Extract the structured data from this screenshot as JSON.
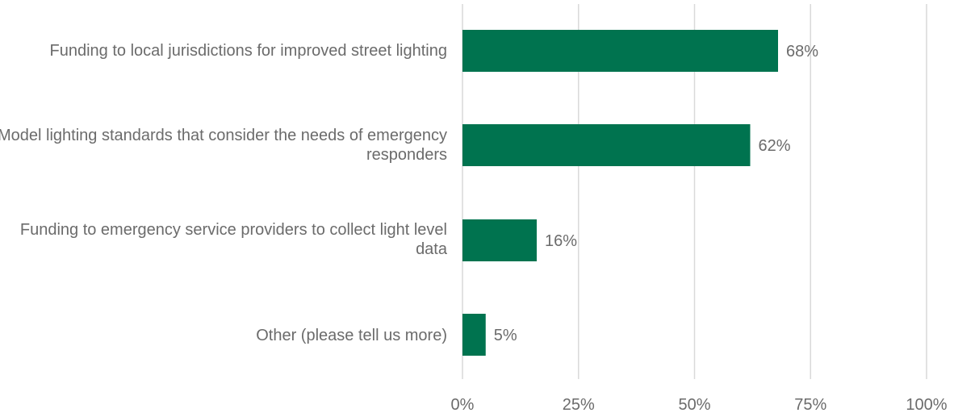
{
  "chart_data": {
    "type": "bar",
    "orientation": "horizontal",
    "categories": [
      "Funding to local jurisdictions for improved street lighting",
      "Model lighting standards that consider the needs of emergency responders",
      "Funding to emergency service providers to collect light level data",
      "Other (please tell us more)"
    ],
    "values": [
      68,
      62,
      16,
      5
    ],
    "data_labels": [
      "68%",
      "62%",
      "16%",
      "5%"
    ],
    "xlim": [
      0,
      100
    ],
    "xticks": [
      0,
      25,
      50,
      75,
      100
    ],
    "xtick_labels": [
      "0%",
      "25%",
      "50%",
      "75%",
      "100%"
    ],
    "grid": "vertical",
    "legend": "none",
    "bar_color": "#00734f",
    "gridline_color": "#d9d9d9",
    "label_color": "#6b6b6b"
  }
}
